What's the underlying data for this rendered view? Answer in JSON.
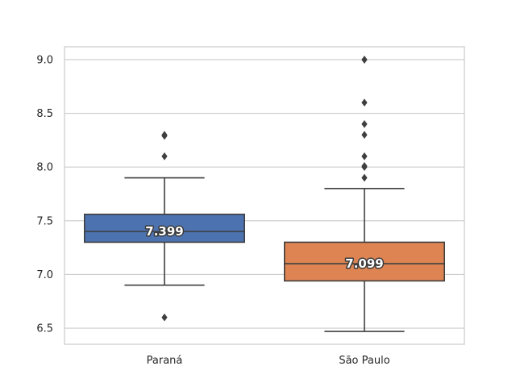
{
  "chart_data": {
    "type": "box",
    "title": "",
    "xlabel": "",
    "ylabel": "",
    "ylim": [
      6.35,
      9.12
    ],
    "yticks": [
      6.5,
      7.0,
      7.5,
      8.0,
      8.5,
      9.0
    ],
    "ytick_labels": [
      "6.5",
      "7.0",
      "7.5",
      "8.0",
      "8.5",
      "9.0"
    ],
    "grid": true,
    "categories": [
      "Paraná",
      "São Paulo"
    ],
    "boxes": [
      {
        "category": "Paraná",
        "color": "#4c72b0",
        "whisker_low": 6.9,
        "q1": 7.3,
        "median": 7.4,
        "q3": 7.56,
        "whisker_high": 7.9,
        "outliers": [
          6.6,
          8.1,
          8.3,
          8.29
        ],
        "median_label": "7.399"
      },
      {
        "category": "São Paulo",
        "color": "#dd8452",
        "whisker_low": 6.47,
        "q1": 6.94,
        "median": 7.1,
        "q3": 7.3,
        "whisker_high": 7.8,
        "outliers": [
          7.9,
          8.0,
          8.01,
          8.1,
          8.3,
          8.4,
          8.6,
          9.0,
          9.0
        ],
        "median_label": "7.099"
      }
    ]
  }
}
